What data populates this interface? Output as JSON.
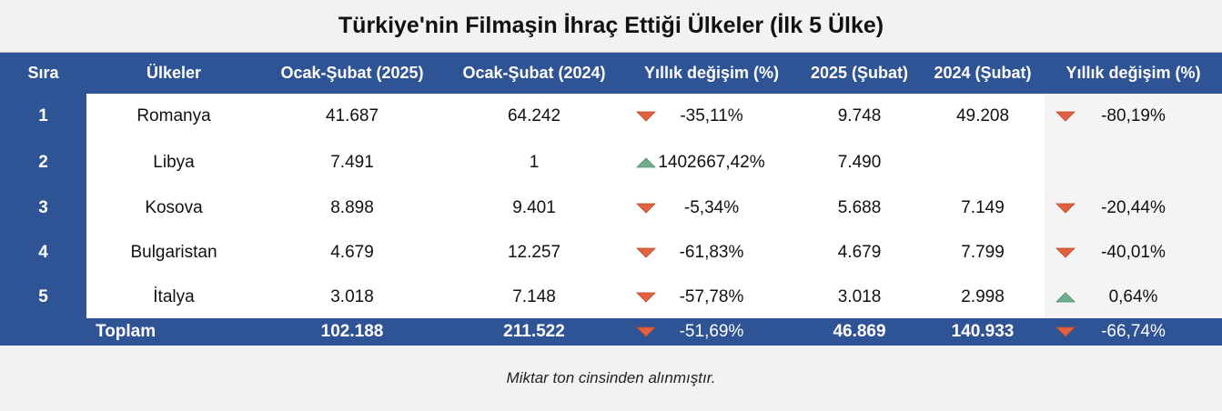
{
  "title": "Türkiye'nin Filmaşin İhraç Ettiği Ülkeler (İlk 5 Ülke)",
  "table": {
    "header": [
      "Sıra",
      "Ülkeler",
      "Ocak-Şubat (2025)",
      "Ocak-Şubat (2024)",
      "Yıllık değişim (%)",
      "2025 (Şubat)",
      "2024 (Şubat)",
      "Yıllık değişim (%)"
    ],
    "rows": [
      [
        "1",
        "Romanya",
        "41.687",
        "64.242",
        "-35,11%",
        "9.748",
        "49.208",
        "-80,19%"
      ],
      [
        "2",
        "Libya",
        "7.491",
        "1",
        "1402667,42%",
        "7.490",
        null,
        null
      ],
      [
        "3",
        "Kosova",
        "8.898",
        "9.401",
        "-5,34%",
        "5.688",
        "7.149",
        "-20,44%"
      ],
      [
        "4",
        "Bulgaristan",
        "4.679",
        "12.257",
        "-61,83%",
        "4.679",
        "7.799",
        "-40,01%"
      ],
      [
        "5",
        "İtalya",
        "3.018",
        "7.148",
        "-57,78%",
        "3.018",
        "2.998",
        "0,64%"
      ]
    ],
    "total": [
      null,
      "Toplam",
      "102.188",
      "211.522",
      "-51,69%",
      "46.869",
      "140.933",
      "-66,74%"
    ]
  },
  "footnote": "Miktar  ton cinsinden alınmıştır."
}
